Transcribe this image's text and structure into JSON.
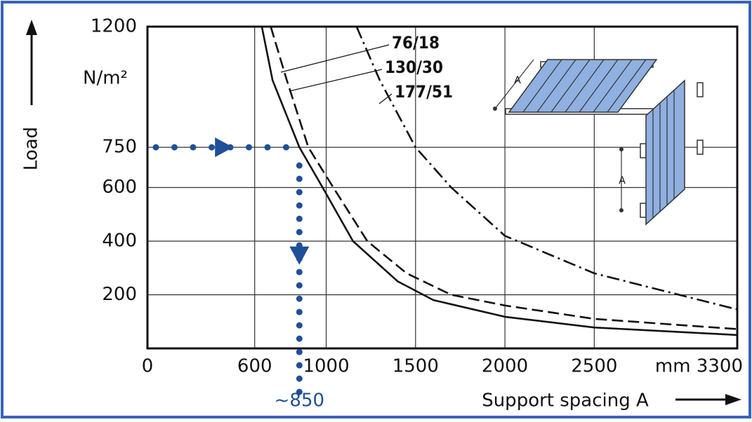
{
  "chart_data": {
    "type": "line",
    "y_axis_label": "Load",
    "y_unit": "N/m²",
    "x_axis_label": "Support spacing A",
    "xlim": [
      0,
      3300
    ],
    "ylim": [
      0,
      1200
    ],
    "xticks": [
      0,
      600,
      1000,
      1500,
      2000,
      2500,
      {
        "value": 3300,
        "label": "mm 3300"
      }
    ],
    "yticks": [
      200,
      400,
      600,
      750,
      1200
    ],
    "grid": true,
    "series": [
      {
        "name": "76/18",
        "color": "#111111",
        "dash": "solid",
        "x": [
          640,
          700,
          850,
          980,
          1150,
          1400,
          1600,
          2000,
          2500,
          3300
        ],
        "values": [
          1200,
          1000,
          750,
          600,
          400,
          250,
          180,
          118,
          78,
          50
        ]
      },
      {
        "name": "130/30",
        "color": "#111111",
        "dash": "dashed",
        "x": [
          690,
          780,
          900,
          1040,
          1230,
          1450,
          1700,
          2000,
          2500,
          3300
        ],
        "values": [
          1200,
          1000,
          750,
          600,
          400,
          280,
          200,
          160,
          110,
          72
        ]
      },
      {
        "name": "177/51",
        "color": "#111111",
        "dash": "dashdot",
        "x": [
          1170,
          1300,
          1500,
          1700,
          2000,
          2500,
          3300
        ],
        "values": [
          1200,
          1000,
          750,
          600,
          420,
          280,
          145
        ]
      }
    ],
    "annotation": {
      "text": "~850",
      "x": 850,
      "y": 750,
      "color": "#1f4f9a"
    },
    "illustration_labels": [
      "A",
      "A"
    ]
  }
}
